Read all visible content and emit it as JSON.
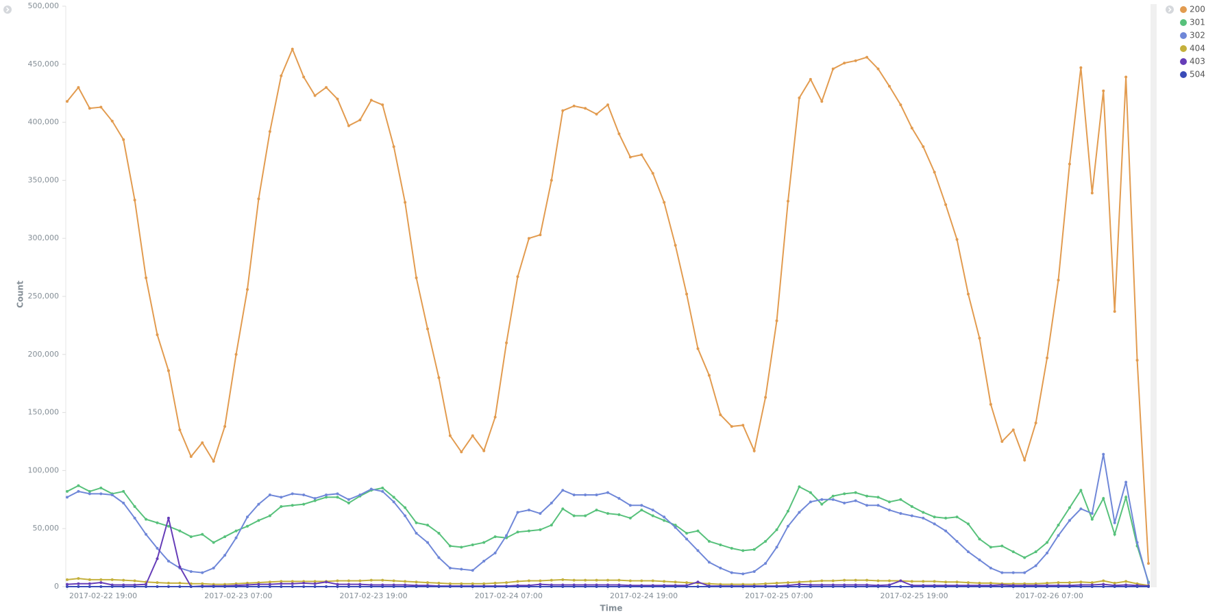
{
  "chart_data": {
    "type": "line",
    "x_label": "Time",
    "y_label": "Count",
    "legend": "top-right",
    "grid": false,
    "ylim": [
      0,
      500000
    ],
    "yticks": [
      {
        "value": 0,
        "label": "0"
      },
      {
        "value": 50000,
        "label": "50,000"
      },
      {
        "value": 100000,
        "label": "100,000"
      },
      {
        "value": 150000,
        "label": "150,000"
      },
      {
        "value": 200000,
        "label": "200,000"
      },
      {
        "value": 250000,
        "label": "250,000"
      },
      {
        "value": 300000,
        "label": "300,000"
      },
      {
        "value": 350000,
        "label": "350,000"
      },
      {
        "value": 400000,
        "label": "400,000"
      },
      {
        "value": 450000,
        "label": "450,000"
      },
      {
        "value": 500000,
        "label": "500,000"
      }
    ],
    "xticks": [
      "2017-02-22 19:00",
      "2017-02-23 07:00",
      "2017-02-23 19:00",
      "2017-02-24 07:00",
      "2017-02-24 19:00",
      "2017-02-25 07:00",
      "2017-02-25 19:00",
      "2017-02-26 07:00"
    ],
    "x": [
      "2017-02-22 19:00",
      "2017-02-22 20:00",
      "2017-02-22 21:00",
      "2017-02-22 22:00",
      "2017-02-22 23:00",
      "2017-02-23 00:00",
      "2017-02-23 01:00",
      "2017-02-23 02:00",
      "2017-02-23 03:00",
      "2017-02-23 04:00",
      "2017-02-23 05:00",
      "2017-02-23 06:00",
      "2017-02-23 07:00",
      "2017-02-23 08:00",
      "2017-02-23 09:00",
      "2017-02-23 10:00",
      "2017-02-23 11:00",
      "2017-02-23 12:00",
      "2017-02-23 13:00",
      "2017-02-23 14:00",
      "2017-02-23 15:00",
      "2017-02-23 16:00",
      "2017-02-23 17:00",
      "2017-02-23 18:00",
      "2017-02-23 19:00",
      "2017-02-23 20:00",
      "2017-02-23 21:00",
      "2017-02-23 22:00",
      "2017-02-23 23:00",
      "2017-02-24 00:00",
      "2017-02-24 01:00",
      "2017-02-24 02:00",
      "2017-02-24 03:00",
      "2017-02-24 04:00",
      "2017-02-24 05:00",
      "2017-02-24 06:00",
      "2017-02-24 07:00",
      "2017-02-24 08:00",
      "2017-02-24 09:00",
      "2017-02-24 10:00",
      "2017-02-24 11:00",
      "2017-02-24 12:00",
      "2017-02-24 13:00",
      "2017-02-24 14:00",
      "2017-02-24 15:00",
      "2017-02-24 16:00",
      "2017-02-24 17:00",
      "2017-02-24 18:00",
      "2017-02-24 19:00",
      "2017-02-24 20:00",
      "2017-02-24 21:00",
      "2017-02-24 22:00",
      "2017-02-24 23:00",
      "2017-02-25 00:00",
      "2017-02-25 01:00",
      "2017-02-25 02:00",
      "2017-02-25 03:00",
      "2017-02-25 04:00",
      "2017-02-25 05:00",
      "2017-02-25 06:00",
      "2017-02-25 07:00",
      "2017-02-25 08:00",
      "2017-02-25 09:00",
      "2017-02-25 10:00",
      "2017-02-25 11:00",
      "2017-02-25 12:00",
      "2017-02-25 13:00",
      "2017-02-25 14:00",
      "2017-02-25 15:00",
      "2017-02-25 16:00",
      "2017-02-25 17:00",
      "2017-02-25 18:00",
      "2017-02-25 19:00",
      "2017-02-25 20:00",
      "2017-02-25 21:00",
      "2017-02-25 22:00",
      "2017-02-25 23:00",
      "2017-02-26 00:00",
      "2017-02-26 01:00",
      "2017-02-26 02:00",
      "2017-02-26 03:00",
      "2017-02-26 04:00",
      "2017-02-26 05:00",
      "2017-02-26 06:00",
      "2017-02-26 07:00",
      "2017-02-26 08:00",
      "2017-02-26 09:00",
      "2017-02-26 10:00",
      "2017-02-26 11:00",
      "2017-02-26 12:00",
      "2017-02-26 13:00",
      "2017-02-26 14:00",
      "2017-02-26 15:00",
      "2017-02-26 16:00",
      "2017-02-26 17:00",
      "2017-02-26 18:00",
      "2017-02-26 19:00"
    ],
    "series": [
      {
        "name": "200",
        "color": "#e29b4f",
        "values": [
          418000,
          430000,
          412000,
          413000,
          401000,
          385000,
          333000,
          266000,
          217000,
          186000,
          135000,
          112000,
          124000,
          108000,
          138000,
          200000,
          256000,
          334000,
          392000,
          440000,
          463000,
          439000,
          423000,
          430000,
          420000,
          397000,
          402000,
          419000,
          415000,
          379000,
          331000,
          266000,
          222000,
          180000,
          130000,
          116000,
          130000,
          117000,
          146000,
          210000,
          267000,
          300000,
          303000,
          350000,
          410000,
          414000,
          412000,
          407000,
          415000,
          390000,
          370000,
          372000,
          356000,
          331000,
          294000,
          252000,
          205000,
          182000,
          148000,
          138000,
          139000,
          117000,
          163000,
          229000,
          332000,
          421000,
          437000,
          418000,
          446000,
          451000,
          453000,
          456000,
          446000,
          431000,
          415000,
          395000,
          379000,
          357000,
          329000,
          299000,
          252000,
          214000,
          157000,
          125000,
          135000,
          109000,
          141000,
          197000,
          264000,
          364000,
          447000,
          339000,
          427000,
          237000,
          439000,
          195000,
          20000
        ]
      },
      {
        "name": "301",
        "color": "#57c17b",
        "values": [
          82000,
          87000,
          82000,
          85000,
          80000,
          82000,
          69000,
          58000,
          55000,
          52000,
          48000,
          43000,
          45000,
          38000,
          43000,
          48000,
          52000,
          57000,
          61000,
          69000,
          70000,
          71000,
          74000,
          77000,
          77000,
          72000,
          78000,
          83000,
          85000,
          77000,
          68000,
          55000,
          53000,
          46000,
          35000,
          34000,
          36000,
          38000,
          43000,
          42000,
          47000,
          48000,
          49000,
          53000,
          67000,
          61000,
          61000,
          66000,
          63000,
          62000,
          59000,
          66000,
          61000,
          57000,
          53000,
          46000,
          48000,
          39000,
          36000,
          33000,
          31000,
          32000,
          39000,
          49000,
          65000,
          86000,
          81000,
          71000,
          78000,
          80000,
          81000,
          78000,
          77000,
          73000,
          75000,
          69000,
          64000,
          60000,
          59000,
          60000,
          54000,
          41000,
          34000,
          35000,
          30000,
          25000,
          30000,
          38000,
          53000,
          68000,
          83000,
          58000,
          76000,
          45000,
          77000,
          35000,
          4000
        ]
      },
      {
        "name": "302",
        "color": "#6f87d8",
        "values": [
          77000,
          82000,
          80000,
          80000,
          79000,
          72000,
          59000,
          45000,
          33000,
          22000,
          16000,
          13000,
          12000,
          16000,
          27000,
          42000,
          60000,
          71000,
          79000,
          77000,
          80000,
          79000,
          76000,
          79000,
          80000,
          75000,
          79000,
          84000,
          82000,
          73000,
          61000,
          46000,
          38000,
          25000,
          16000,
          15000,
          14000,
          22000,
          29000,
          44000,
          64000,
          66000,
          63000,
          72000,
          83000,
          79000,
          79000,
          79000,
          81000,
          76000,
          70000,
          70000,
          66000,
          60000,
          51000,
          41000,
          31000,
          21000,
          16000,
          12000,
          11000,
          13000,
          20000,
          34000,
          52000,
          64000,
          73000,
          75000,
          75000,
          72000,
          74000,
          70000,
          70000,
          66000,
          63000,
          61000,
          59000,
          54000,
          48000,
          39000,
          30000,
          23000,
          16000,
          12000,
          12000,
          12000,
          18000,
          29000,
          44000,
          57000,
          67000,
          63000,
          114000,
          55000,
          90000,
          38000,
          3000
        ]
      },
      {
        "name": "404",
        "color": "#c4b03c",
        "values": [
          6000,
          7000,
          6000,
          6000,
          6000,
          5500,
          5000,
          4000,
          3500,
          3000,
          3000,
          2500,
          2500,
          2000,
          2000,
          2500,
          3000,
          3500,
          4000,
          4500,
          4500,
          4500,
          4500,
          4500,
          5000,
          5000,
          5000,
          5500,
          5500,
          5000,
          4500,
          4000,
          3500,
          3000,
          2500,
          2500,
          2500,
          2500,
          3000,
          3500,
          4500,
          5000,
          5000,
          5500,
          6000,
          5500,
          5500,
          5500,
          5500,
          5500,
          5000,
          5000,
          5000,
          4500,
          4000,
          3500,
          3000,
          2500,
          2000,
          2000,
          2000,
          2000,
          2500,
          3000,
          3500,
          4000,
          4500,
          5000,
          5000,
          5500,
          5500,
          5500,
          5000,
          5000,
          5000,
          4500,
          4500,
          4500,
          4000,
          4000,
          3500,
          3000,
          3000,
          2500,
          2500,
          2500,
          2500,
          3000,
          3500,
          3500,
          4000,
          3500,
          5000,
          3000,
          4500,
          2500,
          1000
        ]
      },
      {
        "name": "403",
        "color": "#663db8",
        "values": [
          2000,
          2500,
          2500,
          3500,
          1500,
          1500,
          1500,
          2000,
          24000,
          59000,
          17000,
          0,
          500,
          500,
          500,
          1000,
          1500,
          2000,
          2000,
          2500,
          2500,
          3000,
          2500,
          4000,
          2000,
          2000,
          2000,
          1500,
          1500,
          1500,
          1500,
          1000,
          1000,
          500,
          500,
          500,
          500,
          500,
          500,
          500,
          1000,
          1000,
          2000,
          1500,
          1500,
          1500,
          1500,
          1500,
          1500,
          1500,
          1000,
          1000,
          1000,
          1000,
          1000,
          1000,
          4000,
          500,
          500,
          500,
          500,
          500,
          500,
          500,
          1000,
          2000,
          1500,
          1500,
          1500,
          1500,
          1500,
          1500,
          1000,
          1500,
          5000,
          1000,
          1000,
          1000,
          1000,
          1000,
          1000,
          1000,
          1000,
          1500,
          1000,
          1000,
          1000,
          1000,
          1000,
          1000,
          1500,
          1500,
          2000,
          1000,
          1500,
          1000,
          500
        ]
      },
      {
        "name": "504",
        "color": "#3a4bb8",
        "values": [
          0,
          0,
          0,
          0,
          0,
          0,
          0,
          0,
          0,
          0,
          0,
          0,
          0,
          0,
          0,
          0,
          0,
          0,
          0,
          0,
          0,
          0,
          0,
          0,
          0,
          0,
          0,
          0,
          0,
          0,
          0,
          0,
          0,
          0,
          0,
          0,
          0,
          0,
          0,
          0,
          0,
          0,
          0,
          0,
          0,
          0,
          0,
          0,
          0,
          0,
          0,
          0,
          0,
          0,
          0,
          0,
          0,
          0,
          0,
          0,
          0,
          0,
          0,
          0,
          0,
          0,
          0,
          0,
          0,
          0,
          0,
          0,
          0,
          0,
          0,
          0,
          0,
          0,
          0,
          0,
          0,
          0,
          0,
          0,
          0,
          0,
          0,
          0,
          0,
          0,
          0,
          0,
          0,
          0,
          0,
          0,
          0
        ]
      }
    ]
  }
}
